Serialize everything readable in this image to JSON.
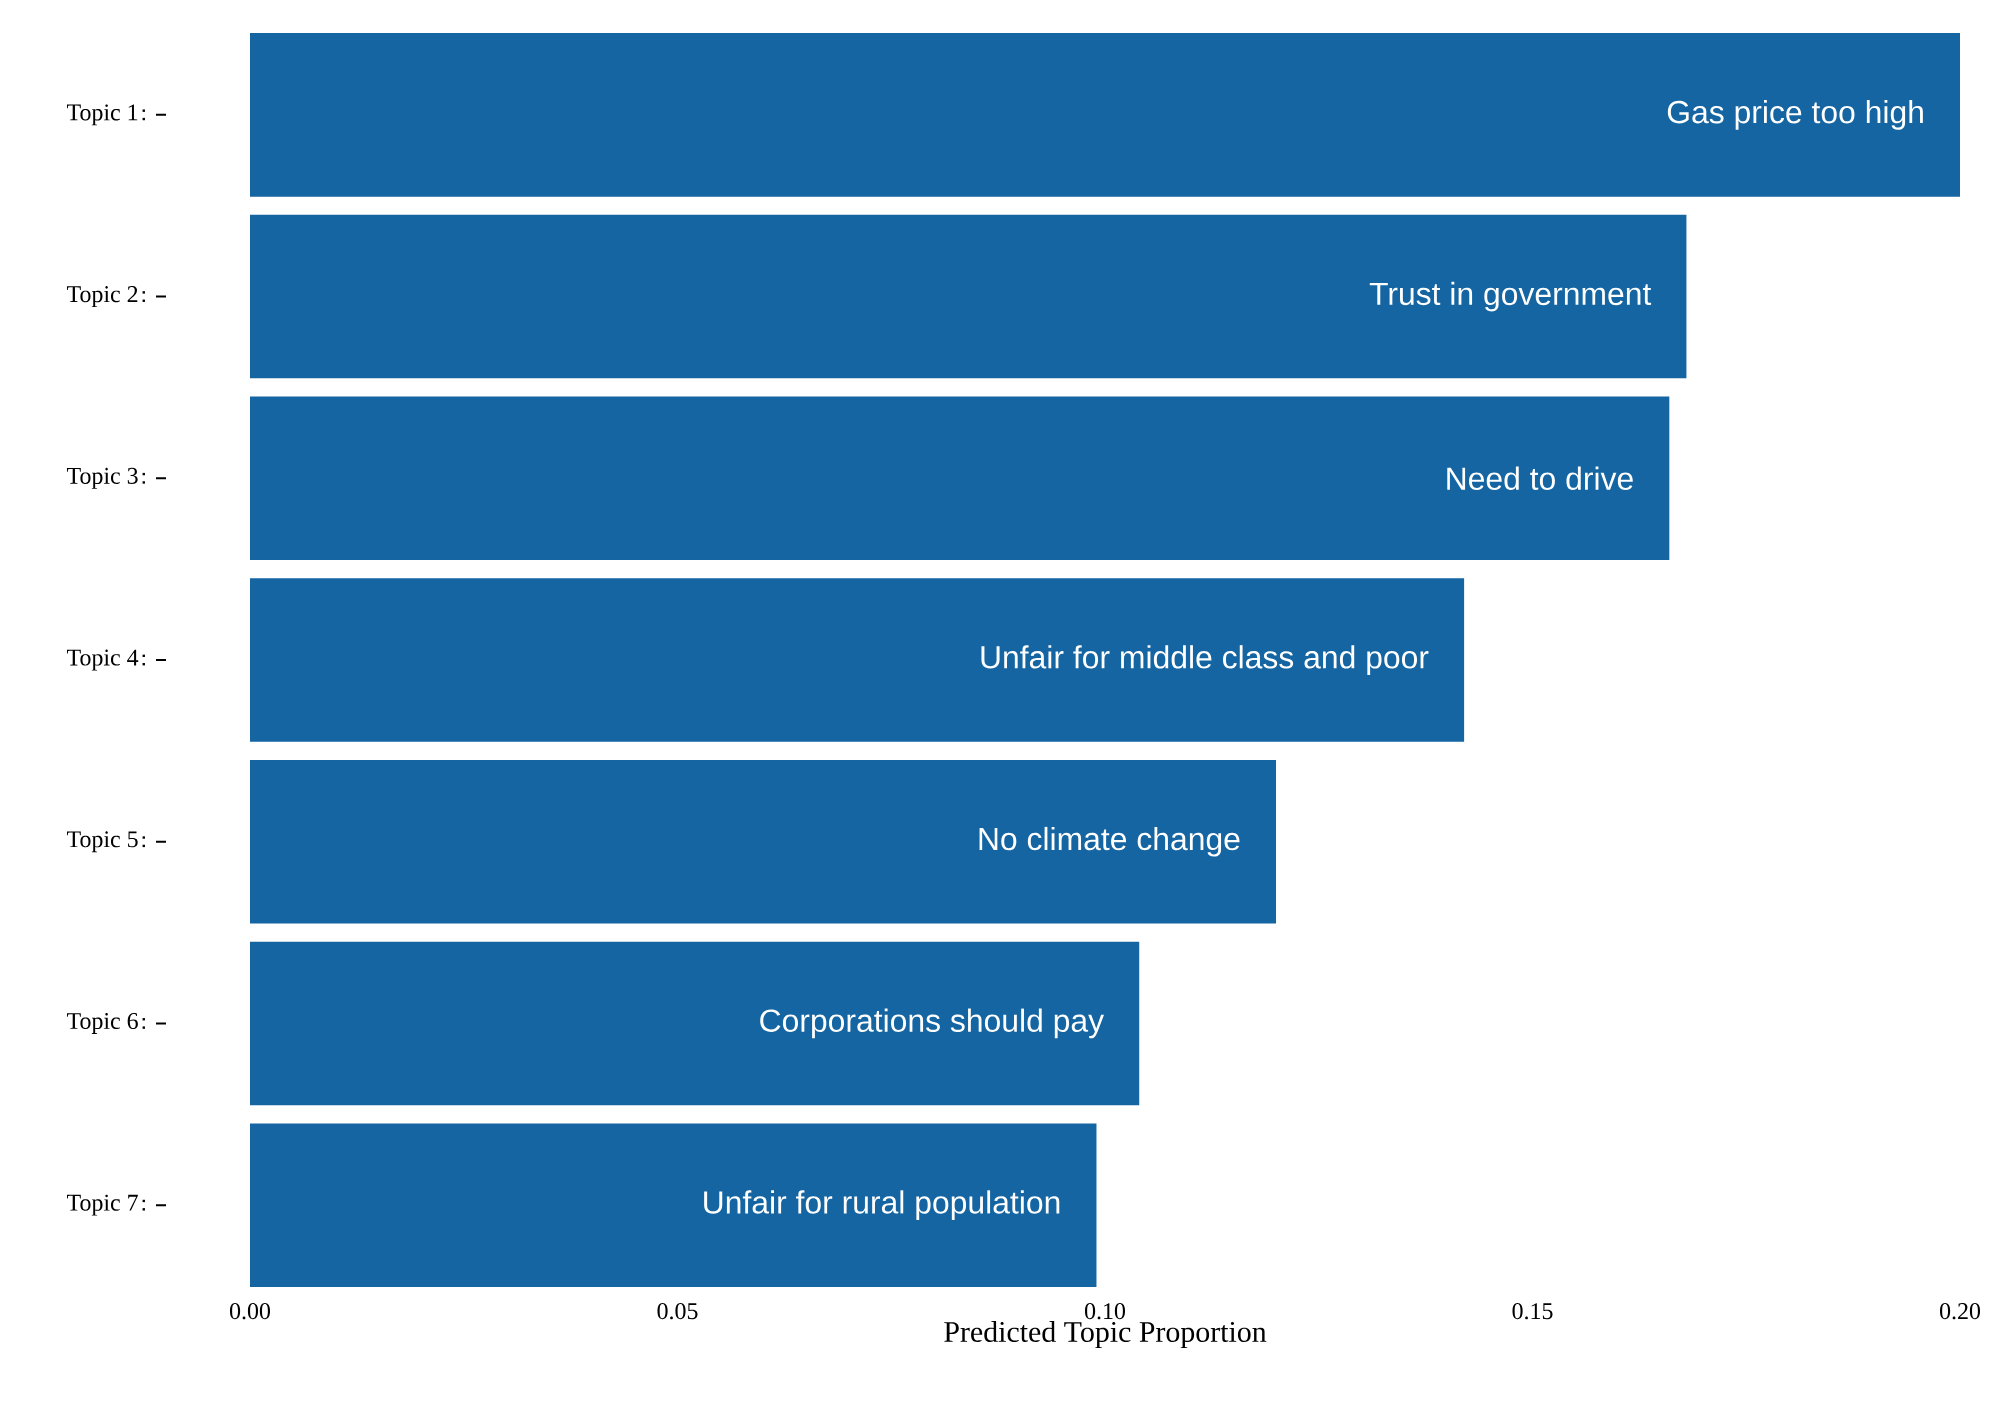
{
  "chart_data": {
    "type": "bar",
    "orientation": "horizontal",
    "xlabel": "Predicted Topic Proportion",
    "categories": [
      "Topic 1",
      "Topic 2",
      "Topic 3",
      "Topic 4",
      "Topic 5",
      "Topic 6",
      "Topic 7"
    ],
    "values": [
      0.2,
      0.168,
      0.166,
      0.142,
      0.12,
      0.104,
      0.099
    ],
    "color": "#1565a2",
    "xlim": [
      0,
      0.2
    ],
    "xticks": [
      {
        "value": 0,
        "label": "0.00"
      },
      {
        "value": 0.05,
        "label": "0.05"
      },
      {
        "value": 0.1,
        "label": "0.10"
      },
      {
        "value": 0.15,
        "label": "0.15"
      },
      {
        "value": 0.2,
        "label": "0.20"
      }
    ],
    "annotations": [
      {
        "text": "Gas price too high",
        "x": 0.2,
        "y": "Topic 1"
      },
      {
        "text": "Trust in government",
        "x": 0.168,
        "y": "Topic 2"
      },
      {
        "text": "Need to drive",
        "x": 0.166,
        "y": "Topic 3"
      },
      {
        "text": "Unfair for middle class and poor",
        "x": 0.142,
        "y": "Topic 4"
      },
      {
        "text": "No climate change",
        "x": 0.12,
        "y": "Topic 5"
      },
      {
        "text": "Corporations should pay",
        "x": 0.104,
        "y": "Topic 6"
      },
      {
        "text": "Unfair for rural population",
        "x": 0.099,
        "y": "Topic 7"
      }
    ]
  }
}
